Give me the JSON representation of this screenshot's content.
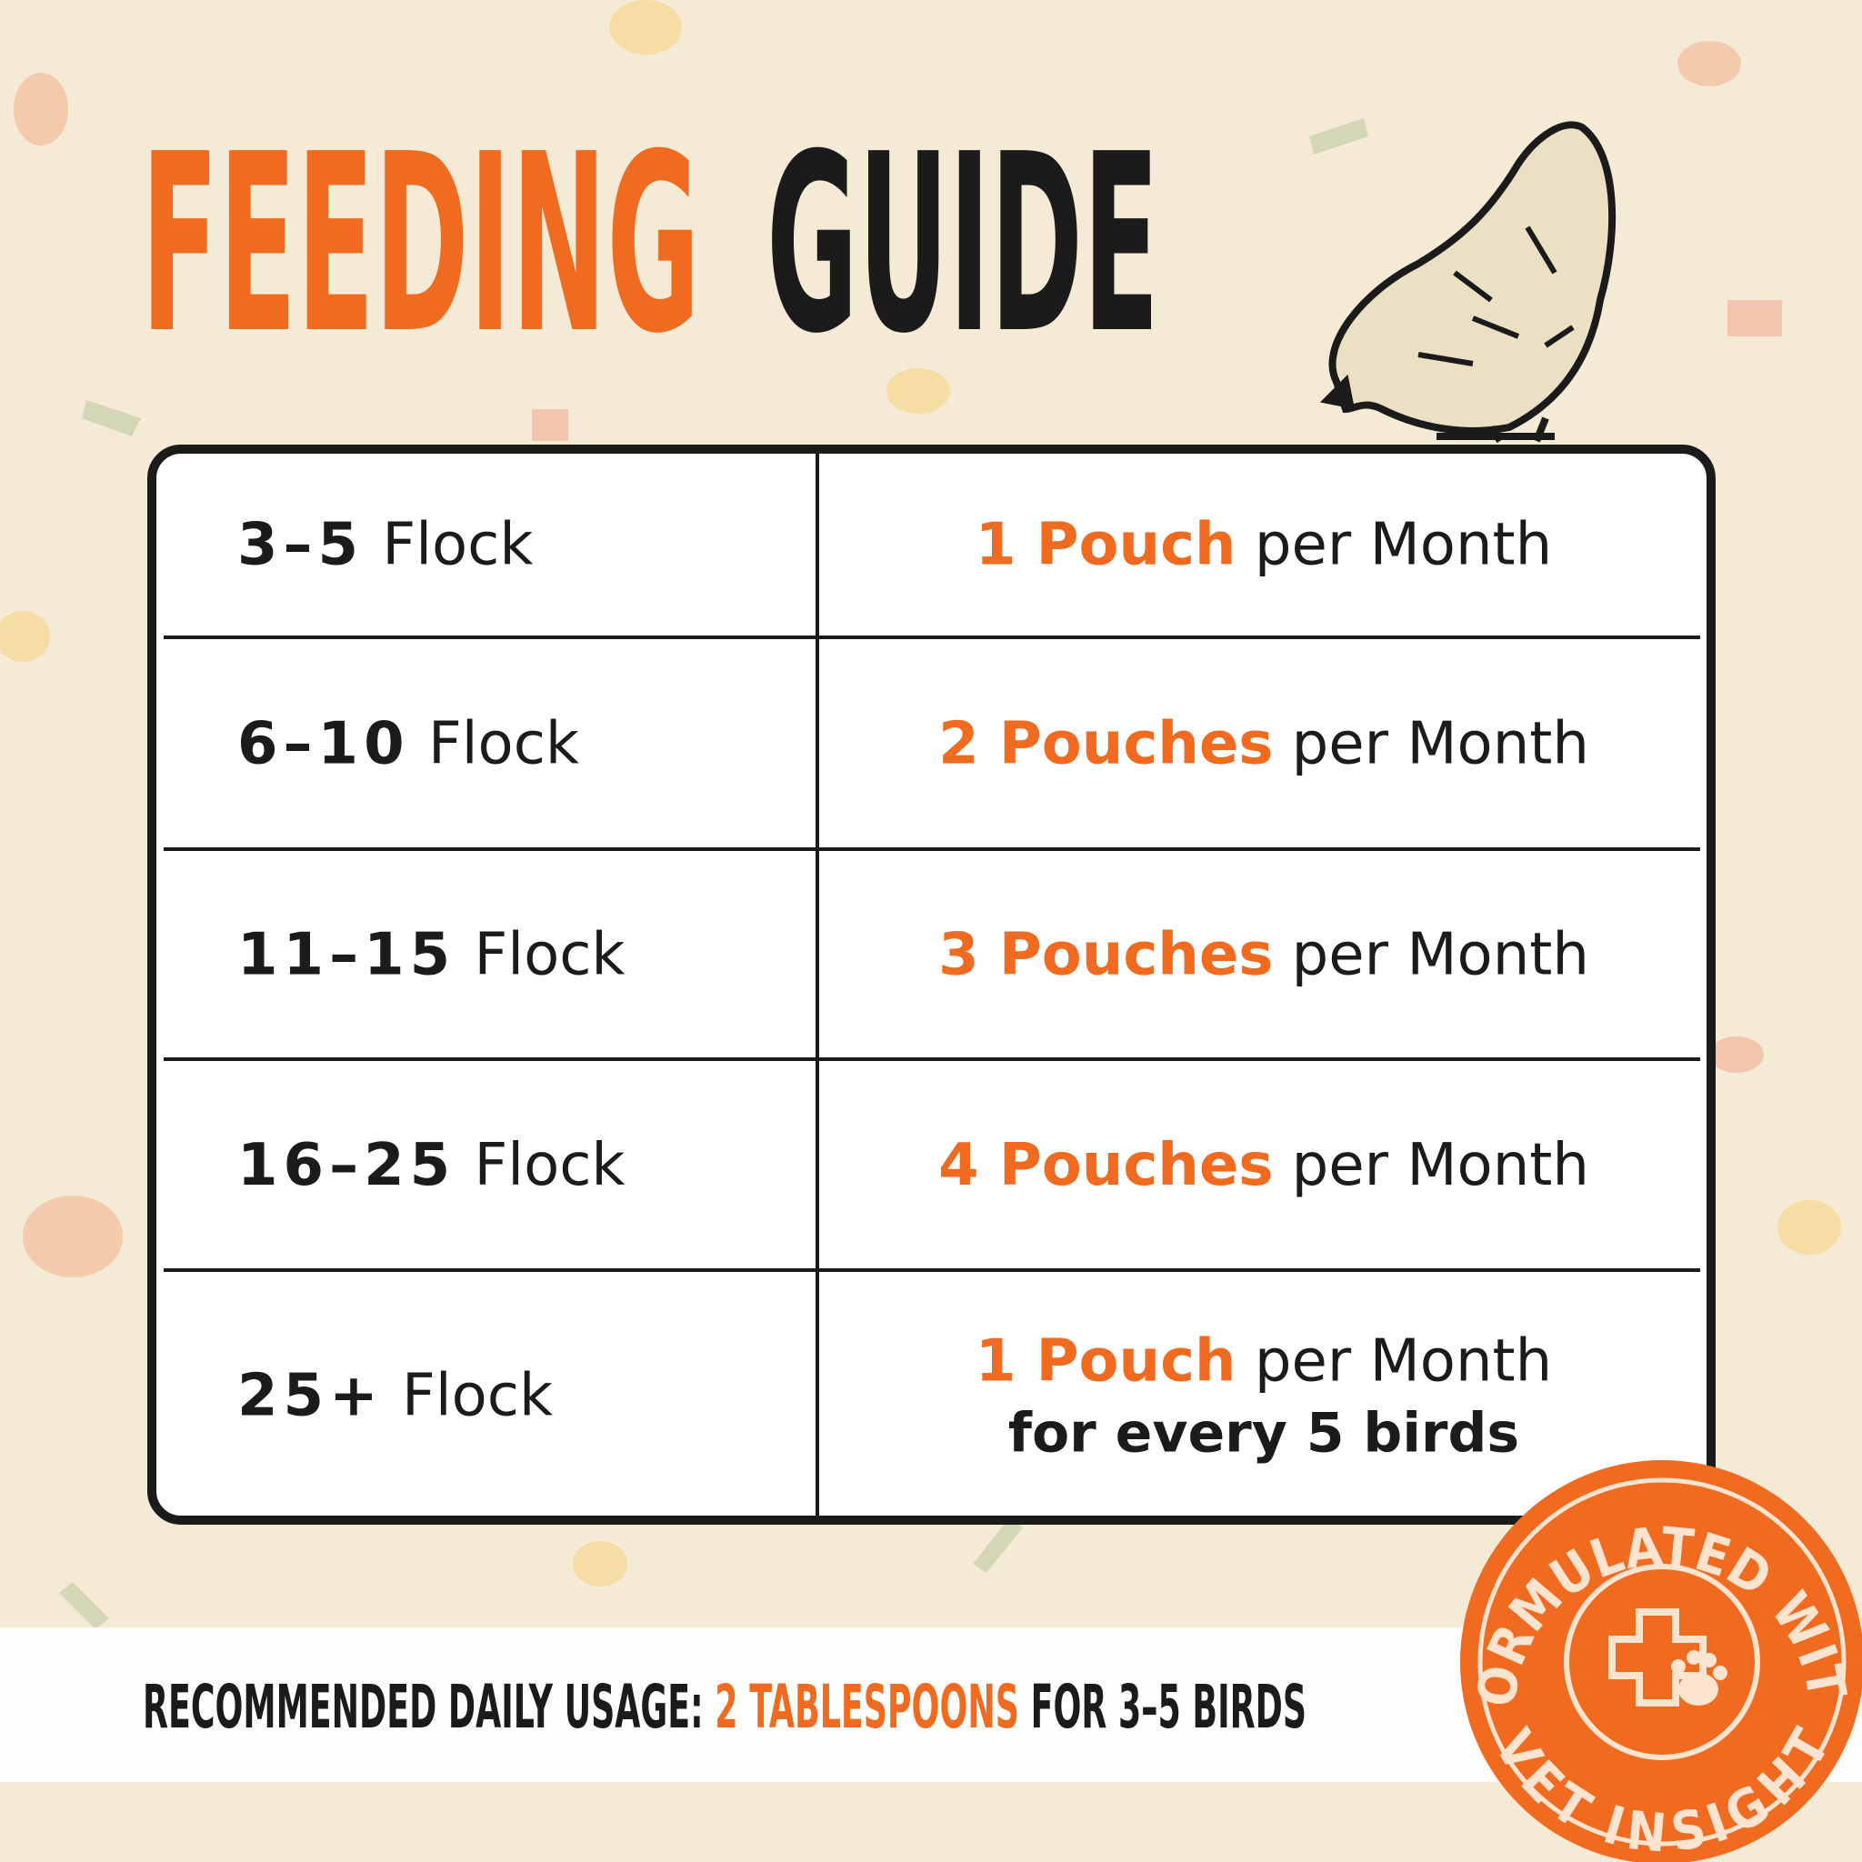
{
  "header": {
    "title_accent": "FEEDING",
    "title_main": "GUIDE"
  },
  "table": {
    "rows": [
      {
        "flock": "3–5",
        "flock_unit": "Flock",
        "amount": "1 Pouch",
        "rate": "per Month"
      },
      {
        "flock": "6–10",
        "flock_unit": "Flock",
        "amount": "2 Pouches",
        "rate": "per Month"
      },
      {
        "flock": "11–15",
        "flock_unit": "Flock",
        "amount": "3 Pouches",
        "rate": "per Month"
      },
      {
        "flock": "16–25",
        "flock_unit": "Flock",
        "amount": "4 Pouches",
        "rate": "per Month"
      },
      {
        "flock": "25+",
        "flock_unit": "Flock",
        "amount": "1 Pouch",
        "rate": "per Month",
        "note": "for every 5 birds"
      }
    ]
  },
  "footer": {
    "label": "RECOMMENDED DAILY USAGE:",
    "dose": "2 TABLESPOONS",
    "target": "FOR 3–5 BIRDS"
  },
  "badge": {
    "top": "FORMULATED WITH",
    "bottom": "VET INSIGHT"
  }
}
